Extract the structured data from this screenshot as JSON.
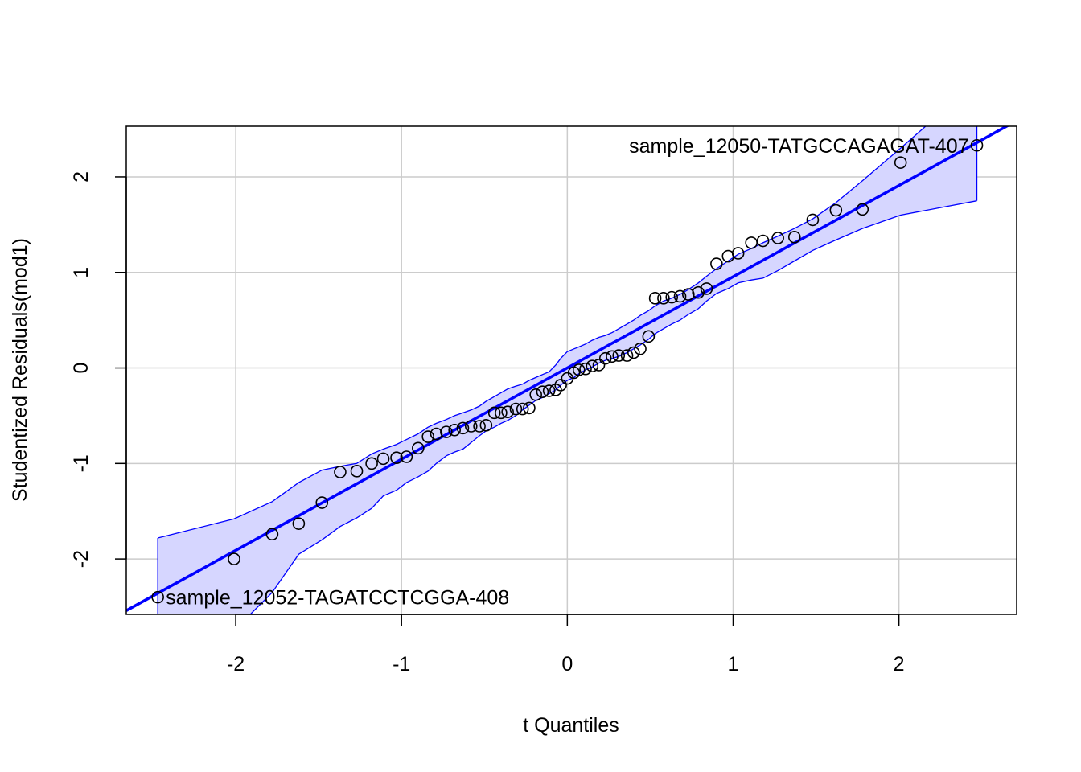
{
  "chart_data": {
    "type": "scatter",
    "title": "",
    "xlabel": "t Quantiles",
    "ylabel": "Studentized Residuals(mod1)",
    "xlim": [
      -2.66,
      2.71
    ],
    "ylim": [
      -2.58,
      2.53
    ],
    "x_ticks": [
      -2,
      -1,
      0,
      1,
      2
    ],
    "x_tick_labels": [
      "-2",
      "-1",
      "0",
      "1",
      "2"
    ],
    "y_ticks": [
      -2,
      -1,
      0,
      1,
      2
    ],
    "y_tick_labels": [
      "-2",
      "-1",
      "0",
      "1",
      "2"
    ],
    "grid": true,
    "colors": {
      "reference_line": "#0000ff",
      "band_fill": "#d6d6ff",
      "band_edge": "#0000ff",
      "points": "#000000",
      "grid": "#cccccc"
    },
    "points": {
      "x": [
        -2.47,
        -2.01,
        -1.78,
        -1.62,
        -1.48,
        -1.37,
        -1.27,
        -1.18,
        -1.11,
        -1.03,
        -0.97,
        -0.9,
        -0.84,
        -0.79,
        -0.73,
        -0.68,
        -0.63,
        -0.58,
        -0.53,
        -0.49,
        -0.44,
        -0.4,
        -0.36,
        -0.31,
        -0.27,
        -0.23,
        -0.19,
        -0.15,
        -0.11,
        -0.07,
        -0.04,
        0.0,
        0.04,
        0.07,
        0.11,
        0.15,
        0.19,
        0.23,
        0.27,
        0.31,
        0.36,
        0.4,
        0.44,
        0.49,
        0.53,
        0.58,
        0.63,
        0.68,
        0.73,
        0.79,
        0.84,
        0.9,
        0.97,
        1.03,
        1.11,
        1.18,
        1.27,
        1.37,
        1.48,
        1.62,
        1.78,
        2.01,
        2.47
      ],
      "y": [
        -2.4,
        -2.0,
        -1.74,
        -1.63,
        -1.41,
        -1.09,
        -1.08,
        -1.0,
        -0.95,
        -0.94,
        -0.93,
        -0.84,
        -0.72,
        -0.69,
        -0.67,
        -0.65,
        -0.63,
        -0.61,
        -0.61,
        -0.6,
        -0.47,
        -0.47,
        -0.46,
        -0.43,
        -0.43,
        -0.42,
        -0.28,
        -0.25,
        -0.24,
        -0.23,
        -0.18,
        -0.11,
        -0.05,
        -0.02,
        -0.01,
        0.02,
        0.03,
        0.1,
        0.12,
        0.13,
        0.13,
        0.16,
        0.2,
        0.33,
        0.73,
        0.73,
        0.74,
        0.75,
        0.77,
        0.79,
        0.83,
        1.09,
        1.17,
        1.2,
        1.31,
        1.33,
        1.36,
        1.37,
        1.55,
        1.65,
        1.66,
        2.15,
        2.33
      ]
    },
    "reference_line": {
      "intercept": 0.0,
      "slope": 0.955
    },
    "confidence_band": {
      "x": [
        -2.47,
        -2.01,
        -1.78,
        -1.62,
        -1.48,
        -1.37,
        -1.27,
        -1.18,
        -1.11,
        -1.03,
        -0.97,
        -0.9,
        -0.84,
        -0.79,
        -0.73,
        -0.68,
        -0.63,
        -0.58,
        -0.53,
        -0.49,
        -0.44,
        -0.4,
        -0.36,
        -0.31,
        -0.27,
        -0.23,
        -0.19,
        -0.15,
        -0.11,
        -0.07,
        -0.04,
        0.0,
        0.04,
        0.07,
        0.11,
        0.15,
        0.19,
        0.23,
        0.27,
        0.31,
        0.36,
        0.4,
        0.44,
        0.49,
        0.53,
        0.58,
        0.63,
        0.68,
        0.73,
        0.79,
        0.84,
        0.9,
        0.97,
        1.03,
        1.11,
        1.18,
        1.27,
        1.37,
        1.48,
        1.62,
        1.78,
        2.01,
        2.47
      ],
      "upper": [
        -1.78,
        -1.58,
        -1.4,
        -1.2,
        -1.07,
        -1.03,
        -1.0,
        -0.9,
        -0.85,
        -0.8,
        -0.75,
        -0.69,
        -0.62,
        -0.58,
        -0.54,
        -0.5,
        -0.47,
        -0.44,
        -0.4,
        -0.35,
        -0.3,
        -0.26,
        -0.22,
        -0.19,
        -0.17,
        -0.13,
        -0.1,
        -0.07,
        -0.04,
        0.03,
        0.1,
        0.17,
        0.2,
        0.22,
        0.25,
        0.29,
        0.32,
        0.34,
        0.37,
        0.41,
        0.46,
        0.5,
        0.55,
        0.6,
        0.65,
        0.7,
        0.73,
        0.77,
        0.82,
        0.89,
        0.96,
        1.04,
        1.12,
        1.19,
        1.25,
        1.31,
        1.38,
        1.46,
        1.56,
        1.73,
        1.96,
        2.3,
        3.0
      ],
      "lower": [
        -3.1,
        -2.75,
        -2.35,
        -1.95,
        -1.8,
        -1.66,
        -1.57,
        -1.47,
        -1.34,
        -1.28,
        -1.2,
        -1.14,
        -1.08,
        -1.0,
        -0.92,
        -0.88,
        -0.85,
        -0.78,
        -0.71,
        -0.66,
        -0.62,
        -0.58,
        -0.55,
        -0.5,
        -0.44,
        -0.39,
        -0.34,
        -0.31,
        -0.27,
        -0.23,
        -0.18,
        -0.13,
        -0.1,
        -0.06,
        -0.02,
        0.01,
        0.05,
        0.08,
        0.1,
        0.12,
        0.16,
        0.2,
        0.24,
        0.3,
        0.36,
        0.41,
        0.46,
        0.5,
        0.56,
        0.62,
        0.7,
        0.78,
        0.83,
        0.89,
        0.92,
        0.94,
        1.02,
        1.12,
        1.23,
        1.34,
        1.46,
        1.6,
        1.75
      ]
    },
    "annotations": [
      {
        "text": "sample_12050-TATGCCAGAGAT-407",
        "x": 2.47,
        "y": 2.33,
        "anchor": "left-of-point"
      },
      {
        "text": "sample_12052-TAGATCCTCGGA-408",
        "x": -2.47,
        "y": -2.4,
        "anchor": "right-of-point"
      }
    ]
  }
}
